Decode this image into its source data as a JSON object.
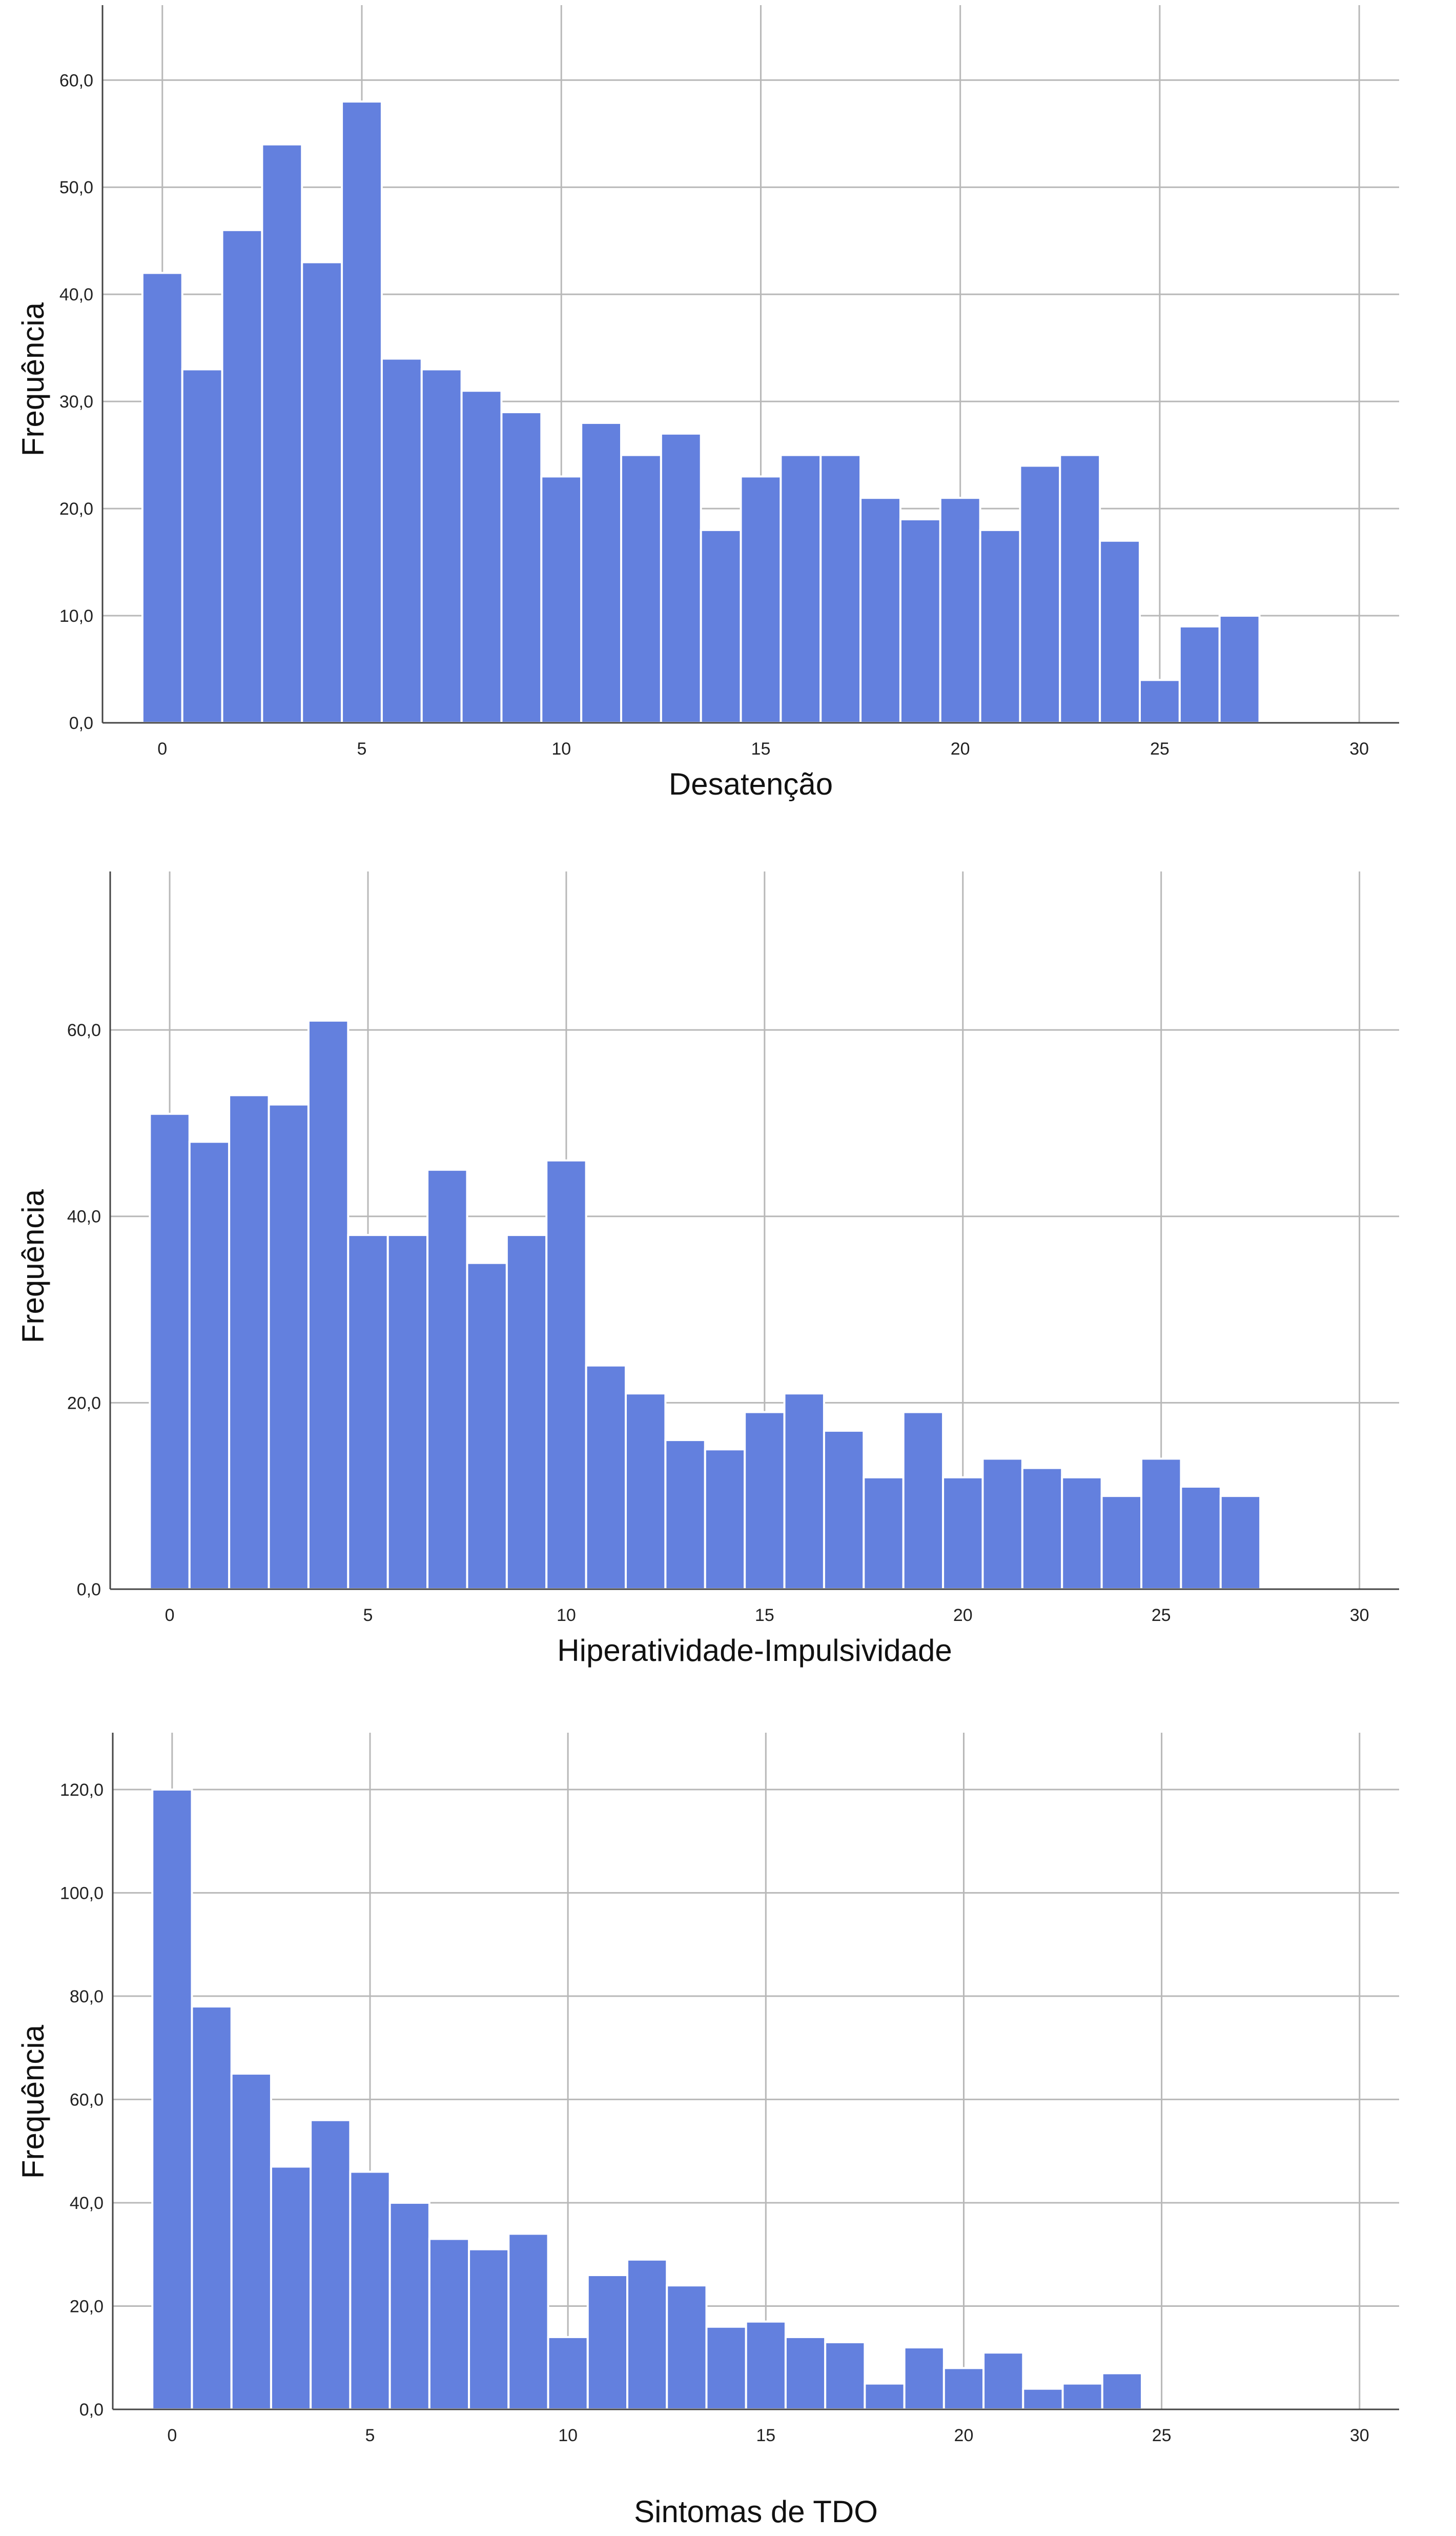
{
  "chart_data": [
    {
      "type": "bar",
      "title": "",
      "xlabel": "Desatenção",
      "ylabel": "Frequência",
      "x": [
        0,
        1,
        2,
        3,
        4,
        5,
        6,
        7,
        8,
        9,
        10,
        11,
        12,
        13,
        14,
        15,
        16,
        17,
        18,
        19,
        20,
        21,
        22,
        23,
        24,
        25,
        26,
        27
      ],
      "values": [
        42,
        33,
        46,
        54,
        43,
        58,
        34,
        33,
        31,
        29,
        23,
        28,
        25,
        27,
        18,
        23,
        25,
        25,
        21,
        19,
        21,
        18,
        24,
        25,
        17,
        4,
        9,
        10
      ],
      "xticks": [
        "0",
        "5",
        "10",
        "15",
        "20",
        "25",
        "30"
      ],
      "xtick_values": [
        0,
        5,
        10,
        15,
        20,
        25,
        30
      ],
      "yticks": [
        "0,0",
        "10,0",
        "20,0",
        "30,0",
        "40,0",
        "50,0",
        "60,0"
      ],
      "ytick_values": [
        0,
        10,
        20,
        30,
        40,
        50,
        60
      ],
      "xlim": [
        -1.5,
        31
      ],
      "ylim": [
        0,
        67
      ],
      "grid": true,
      "bar_color": "#6380de"
    },
    {
      "type": "bar",
      "title": "",
      "xlabel": "Hiperatividade-Impulsividade",
      "ylabel": "Frequência",
      "x": [
        0,
        1,
        2,
        3,
        4,
        5,
        6,
        7,
        8,
        9,
        10,
        11,
        12,
        13,
        14,
        15,
        16,
        17,
        18,
        19,
        20,
        21,
        22,
        23,
        24,
        25,
        26,
        27
      ],
      "values": [
        51,
        48,
        53,
        52,
        61,
        38,
        38,
        45,
        35,
        38,
        46,
        24,
        21,
        16,
        15,
        19,
        21,
        17,
        12,
        19,
        12,
        14,
        13,
        12,
        10,
        14,
        11,
        10
      ],
      "xticks": [
        "0",
        "5",
        "10",
        "15",
        "20",
        "25",
        "30"
      ],
      "xtick_values": [
        0,
        5,
        10,
        15,
        20,
        25,
        30
      ],
      "yticks": [
        "0,0",
        "20,0",
        "40,0",
        "60,0"
      ],
      "ytick_values": [
        0,
        20,
        40,
        60
      ],
      "xlim": [
        -1.5,
        31
      ],
      "ylim": [
        0,
        77
      ],
      "grid": true,
      "bar_color": "#6380de"
    },
    {
      "type": "bar",
      "title": "",
      "xlabel": "Sintomas de TDO",
      "ylabel": "Frequência",
      "x": [
        0,
        1,
        2,
        3,
        4,
        5,
        6,
        7,
        8,
        9,
        10,
        11,
        12,
        13,
        14,
        15,
        16,
        17,
        18,
        19,
        20,
        21,
        22,
        23,
        24
      ],
      "values": [
        120,
        78,
        65,
        47,
        56,
        46,
        40,
        33,
        31,
        34,
        14,
        26,
        29,
        24,
        16,
        17,
        14,
        13,
        5,
        12,
        8,
        11,
        4,
        5,
        7
      ],
      "xticks": [
        "0",
        "5",
        "10",
        "15",
        "20",
        "25",
        "30"
      ],
      "xtick_values": [
        0,
        5,
        10,
        15,
        20,
        25,
        30
      ],
      "yticks": [
        "0,0",
        "20,0",
        "40,0",
        "60,0",
        "80,0",
        "100,0",
        "120,0"
      ],
      "ytick_values": [
        0,
        20,
        40,
        60,
        80,
        100,
        120
      ],
      "xlim": [
        -1.5,
        31
      ],
      "ylim": [
        0,
        131
      ],
      "grid": true,
      "bar_color": "#6380de"
    }
  ]
}
